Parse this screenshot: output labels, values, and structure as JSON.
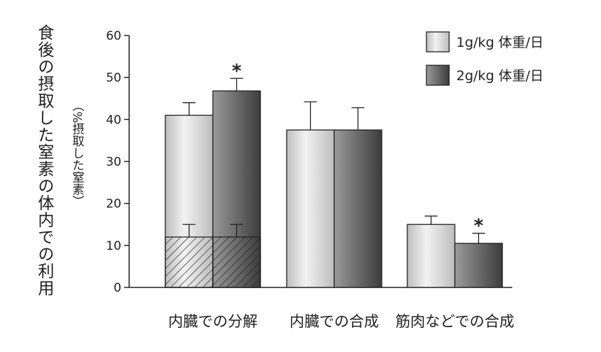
{
  "colors": {
    "series1_light": "#f2f2f2",
    "series1_dark": "#bdbdbd",
    "series2_light": "#9a9a9a",
    "series2_dark": "#3c3c3c",
    "axis": "#222222"
  },
  "chart_data": {
    "type": "bar",
    "ylabel": "食後の摂取した窒素の体内での利用",
    "ylabel_sub": "（%摂取した窒素）",
    "ylim": [
      0,
      60
    ],
    "yticks": [
      0,
      10,
      20,
      30,
      40,
      50,
      60
    ],
    "grid": false,
    "legend_position": "top-right",
    "categories": [
      "内臓での分解",
      "内臓での合成",
      "筋肉などでの合成"
    ],
    "series": [
      {
        "name": "1g/kg 体重/日",
        "values": [
          41,
          37.5,
          15
        ],
        "errors": [
          3,
          6.7,
          2
        ]
      },
      {
        "name": "2g/kg 体重/日",
        "values": [
          46.8,
          37.5,
          10.5
        ],
        "errors": [
          3,
          5.3,
          2.4
        ]
      }
    ],
    "hatched_segments": [
      {
        "category_index": 0,
        "series_index": 0,
        "value": 12,
        "error": 3
      },
      {
        "category_index": 0,
        "series_index": 1,
        "value": 12,
        "error": 3
      }
    ],
    "significance_markers": [
      {
        "category_index": 0,
        "series_index": 1,
        "label": "*"
      },
      {
        "category_index": 2,
        "series_index": 1,
        "label": "*"
      }
    ]
  }
}
